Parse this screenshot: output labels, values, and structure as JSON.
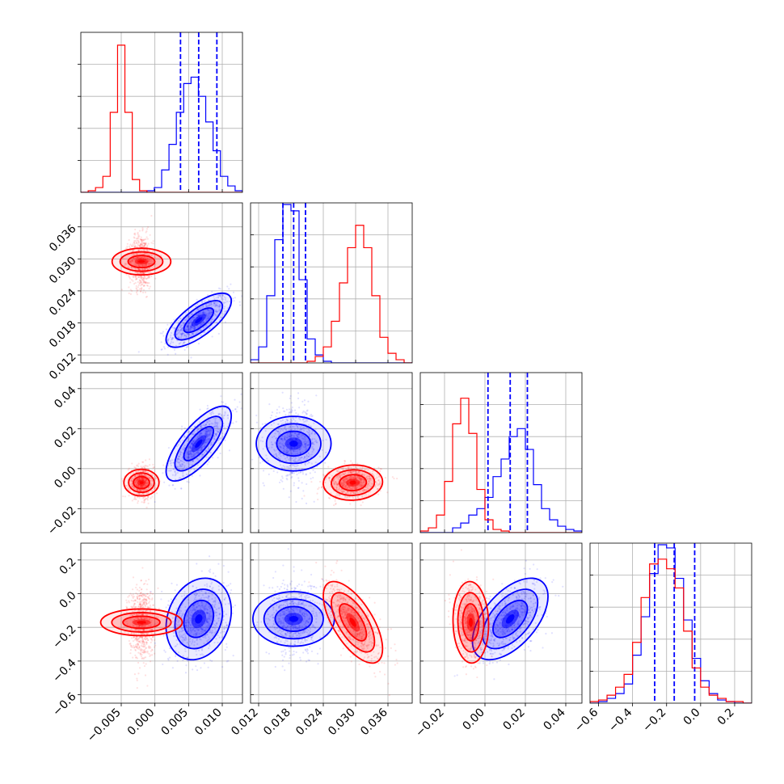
{
  "chart_data": {
    "type": "corner",
    "parameters": 4,
    "grid": true,
    "colors": {
      "blue": "#0000ff",
      "red": "#ff0000"
    },
    "axes": [
      {
        "ticks": [
          -0.005,
          0.0,
          0.005,
          0.01
        ],
        "tick_labels": [
          "−0.005",
          "0.000",
          "0.005",
          "0.010"
        ],
        "range": [
          -0.011,
          0.013
        ]
      },
      {
        "ticks": [
          0.012,
          0.018,
          0.024,
          0.03,
          0.036
        ],
        "tick_labels": [
          "0.012",
          "0.018",
          "0.024",
          "0.030",
          "0.036"
        ],
        "range": [
          0.0105,
          0.0405
        ]
      },
      {
        "ticks": [
          -0.02,
          0.0,
          0.02,
          0.04
        ],
        "tick_labels": [
          "−0.02",
          "0.00",
          "0.02",
          "0.04"
        ],
        "range": [
          -0.032,
          0.048
        ]
      },
      {
        "ticks": [
          -0.6,
          -0.4,
          -0.2,
          0.0,
          0.2
        ],
        "tick_labels": [
          "−0.6",
          "−0.4",
          "−0.2",
          "0.0",
          "0.2"
        ],
        "range": [
          -0.65,
          0.3
        ]
      }
    ],
    "series": [
      {
        "color": "blue",
        "mean": [
          0.0065,
          0.0185,
          0.0125,
          -0.15
        ],
        "std": [
          0.0022,
          0.0023,
          0.0085,
          0.11
        ],
        "quantiles": [
          [
            0.0038,
            0.0065,
            0.0092
          ],
          [
            0.0165,
            0.0185,
            0.0207
          ],
          [
            0.0015,
            0.0125,
            0.021
          ],
          [
            -0.27,
            -0.155,
            -0.035
          ]
        ],
        "histograms": [
          [
            0,
            0,
            0,
            0,
            0,
            0,
            0,
            0,
            0,
            0.01,
            0.03,
            0.14,
            0.3,
            0.5,
            0.68,
            0.72,
            0.6,
            0.44,
            0.26,
            0.1,
            0.04,
            0.01
          ],
          [
            0.02,
            0.1,
            0.42,
            0.77,
            0.99,
            0.95,
            0.52,
            0.15,
            0.05,
            0.01,
            0,
            0,
            0,
            0,
            0,
            0,
            0,
            0,
            0,
            0
          ],
          [
            0,
            0,
            0,
            0,
            0.03,
            0.06,
            0.11,
            0.15,
            0.22,
            0.35,
            0.46,
            0.6,
            0.65,
            0.52,
            0.3,
            0.15,
            0.08,
            0.04,
            0.02,
            0.01
          ],
          [
            0.0,
            0.01,
            0.03,
            0.06,
            0.12,
            0.3,
            0.54,
            0.81,
            0.99,
            0.97,
            0.78,
            0.52,
            0.28,
            0.14,
            0.06,
            0.02,
            0.01,
            0.0,
            0.0
          ]
        ]
      },
      {
        "color": "red",
        "mean": [
          -0.002,
          0.0295,
          -0.007,
          -0.17
        ],
        "std": [
          0.0009,
          0.0025,
          0.004,
          0.11
        ],
        "quantiles": [],
        "histograms": [
          [
            0.0,
            0.01,
            0.03,
            0.1,
            0.5,
            0.92,
            0.5,
            0.08,
            0.01,
            0,
            0,
            0,
            0,
            0,
            0,
            0,
            0,
            0,
            0,
            0,
            0,
            0
          ],
          [
            0,
            0,
            0,
            0,
            0,
            0,
            0,
            0.01,
            0.04,
            0.1,
            0.26,
            0.5,
            0.72,
            0.86,
            0.72,
            0.42,
            0.16,
            0.06,
            0.02,
            0.0
          ],
          [
            0.01,
            0.03,
            0.11,
            0.32,
            0.68,
            0.84,
            0.62,
            0.27,
            0.08,
            0.02,
            0.01,
            0,
            0,
            0,
            0,
            0,
            0,
            0,
            0,
            0
          ],
          [
            0.01,
            0.02,
            0.05,
            0.1,
            0.18,
            0.38,
            0.66,
            0.87,
            0.9,
            0.84,
            0.72,
            0.45,
            0.22,
            0.1,
            0.05,
            0.03,
            0.01,
            0.01,
            0.0
          ]
        ]
      }
    ],
    "correlations": {
      "blue": {
        "0-1": 0.72,
        "0-2": 0.74,
        "0-3": 0.2,
        "1-2": 0.0,
        "1-3": 0.0,
        "2-3": 0.55
      },
      "red": {
        "0-1": 0.0,
        "0-2": 0.0,
        "0-3": 0.0,
        "1-2": 0.05,
        "1-3": -0.65,
        "2-3": -0.05
      }
    }
  }
}
